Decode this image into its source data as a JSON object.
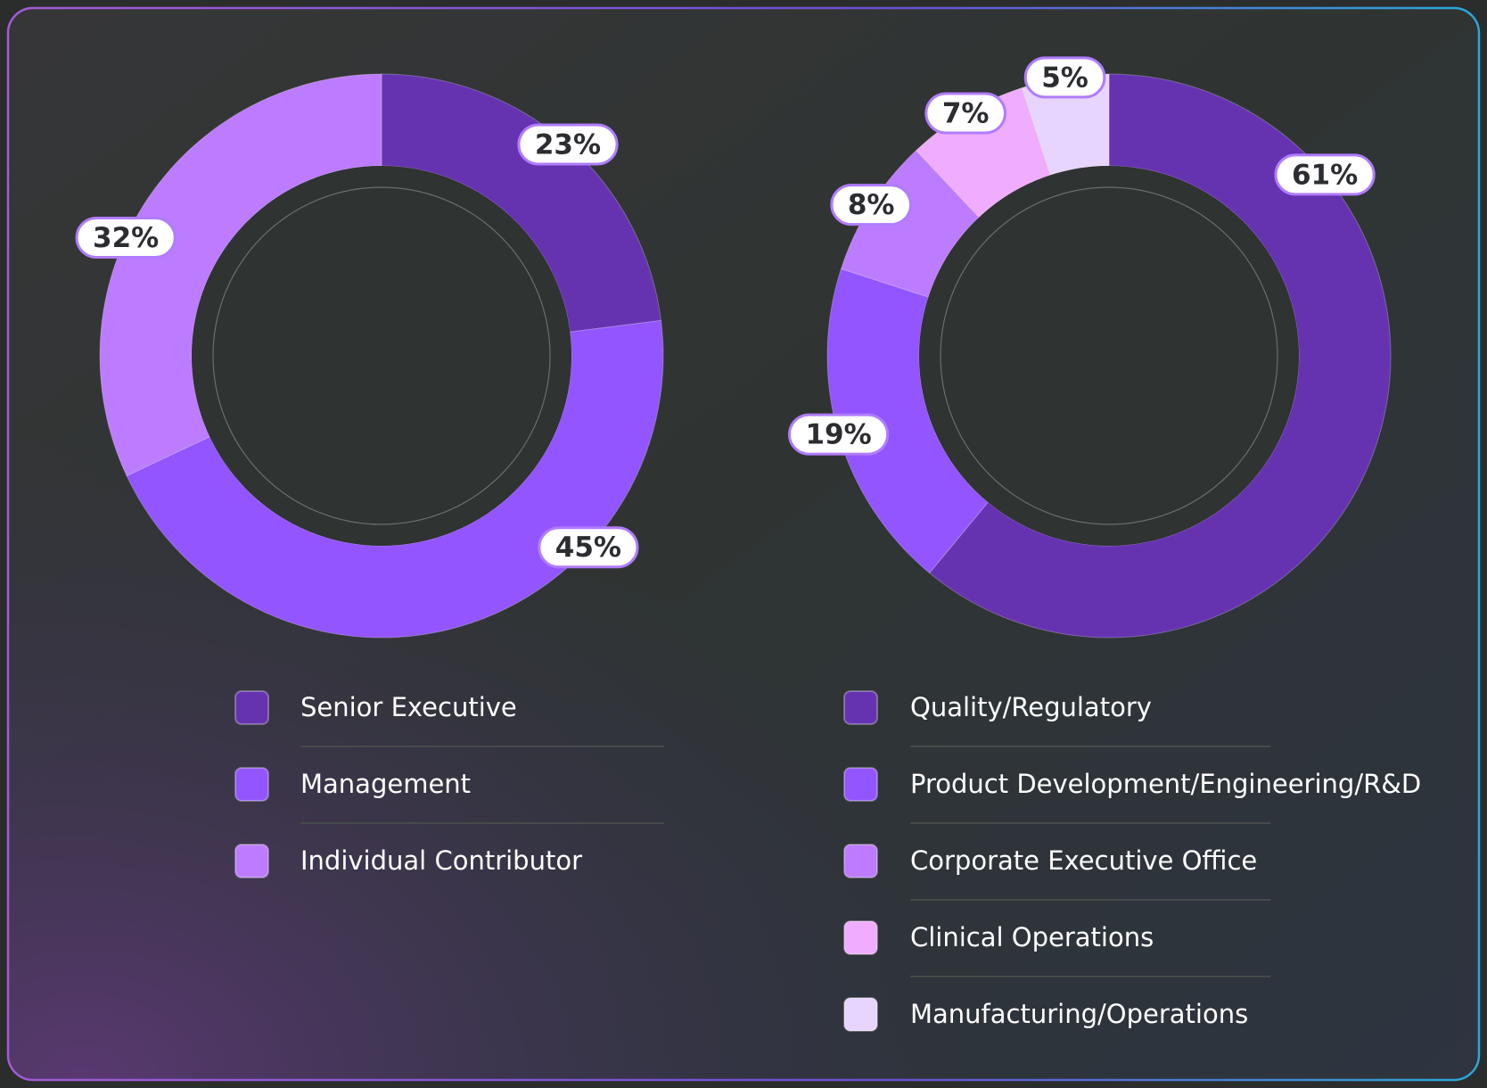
{
  "chart_data": [
    {
      "type": "pie",
      "categories": [
        "Senior Executive",
        "Management",
        "Individual Contributor"
      ],
      "values": [
        23,
        45,
        32
      ],
      "value_labels": [
        "23%",
        "45%",
        "32%"
      ],
      "colors": [
        "#6633b0",
        "#9355ff",
        "#bd7cff"
      ]
    },
    {
      "type": "pie",
      "categories": [
        "Quality/Regulatory",
        "Product Development/Engineering/R&D",
        "Corporate Executive Office",
        "Clinical Operations",
        "Manufacturing/Operations"
      ],
      "values": [
        61,
        19,
        8,
        7,
        5
      ],
      "value_labels": [
        "61%",
        "19%",
        "8%",
        "7%",
        "5%"
      ],
      "colors": [
        "#6633b0",
        "#9355ff",
        "#bd7cff",
        "#f0acff",
        "#e8d5ff"
      ]
    }
  ]
}
